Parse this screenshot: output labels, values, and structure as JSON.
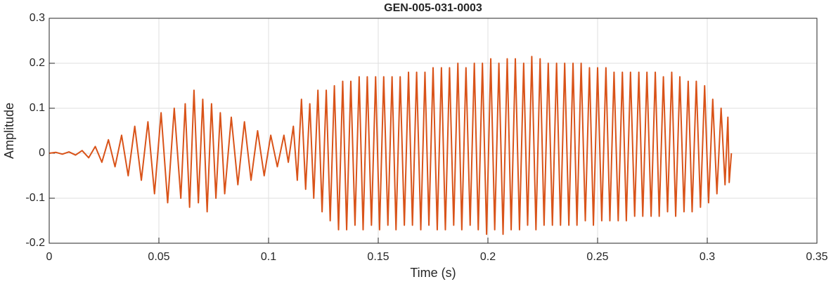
{
  "chart_data": {
    "type": "line",
    "title": "GEN-005-031-0003",
    "x_label": "Time (s)",
    "y_label": "Amplitude",
    "color": "#d95319",
    "grid": true,
    "xlim": [
      0,
      0.35
    ],
    "xticks": [
      0,
      0.05,
      0.1,
      0.15,
      0.2,
      0.25,
      0.3,
      0.35
    ],
    "ylim": [
      -0.2,
      0.3
    ],
    "yticks": [
      -0.2,
      -0.1,
      0,
      0.1,
      0.2,
      0.3
    ],
    "x": [
      0,
      0.003,
      0.006,
      0.009,
      0.012,
      0.015,
      0.018,
      0.021,
      0.024,
      0.027,
      0.03,
      0.033,
      0.036,
      0.039,
      0.042,
      0.045,
      0.048,
      0.051,
      0.054,
      0.057,
      0.06,
      0.062,
      0.064,
      0.066,
      0.068,
      0.07,
      0.072,
      0.074,
      0.076,
      0.078,
      0.08,
      0.083,
      0.086,
      0.089,
      0.092,
      0.095,
      0.098,
      0.101,
      0.104,
      0.107,
      0.109,
      0.1113,
      0.1131,
      0.115,
      0.1169,
      0.1188,
      0.1206,
      0.1225,
      0.1244,
      0.1263,
      0.1281,
      0.13,
      0.1319,
      0.1338,
      0.1356,
      0.1375,
      0.1394,
      0.1413,
      0.1431,
      0.145,
      0.1469,
      0.1488,
      0.1506,
      0.1525,
      0.1544,
      0.1563,
      0.1581,
      0.16,
      0.1619,
      0.1638,
      0.1656,
      0.1675,
      0.1694,
      0.1713,
      0.1731,
      0.175,
      0.1769,
      0.1788,
      0.1806,
      0.1825,
      0.1844,
      0.1863,
      0.1881,
      0.19,
      0.1919,
      0.1938,
      0.1956,
      0.1975,
      0.1994,
      0.2013,
      0.2031,
      0.205,
      0.2069,
      0.2088,
      0.2106,
      0.2125,
      0.2144,
      0.2163,
      0.2181,
      0.22,
      0.2219,
      0.2238,
      0.2256,
      0.2275,
      0.2294,
      0.2313,
      0.2331,
      0.235,
      0.2369,
      0.2388,
      0.2406,
      0.2425,
      0.2444,
      0.2463,
      0.2481,
      0.25,
      0.2519,
      0.2538,
      0.2556,
      0.2575,
      0.2594,
      0.2613,
      0.2631,
      0.265,
      0.2669,
      0.2688,
      0.2706,
      0.2725,
      0.2744,
      0.2763,
      0.2781,
      0.28,
      0.2819,
      0.2838,
      0.2856,
      0.2875,
      0.2894,
      0.2913,
      0.2931,
      0.295,
      0.2969,
      0.2988,
      0.3006,
      0.3025,
      0.3044,
      0.3063,
      0.3081,
      0.3094,
      0.31,
      0.311
    ],
    "values": [
      0,
      0.002,
      -0.002,
      0.003,
      -0.004,
      0.006,
      -0.01,
      0.015,
      -0.02,
      0.03,
      -0.03,
      0.04,
      -0.05,
      0.06,
      -0.06,
      0.07,
      -0.09,
      0.09,
      -0.11,
      0.1,
      -0.1,
      0.11,
      -0.12,
      0.14,
      -0.11,
      0.12,
      -0.13,
      0.11,
      -0.1,
      0.09,
      -0.09,
      0.08,
      -0.07,
      0.07,
      -0.06,
      0.05,
      -0.05,
      0.04,
      -0.03,
      0.04,
      -0.02,
      0.06,
      -0.06,
      0.12,
      -0.08,
      0.11,
      -0.1,
      0.14,
      -0.13,
      0.14,
      -0.15,
      0.15,
      -0.17,
      0.16,
      -0.17,
      0.16,
      -0.16,
      0.17,
      -0.17,
      0.17,
      -0.16,
      0.17,
      -0.17,
      0.17,
      -0.16,
      0.17,
      -0.17,
      0.17,
      -0.16,
      0.18,
      -0.16,
      0.18,
      -0.17,
      0.18,
      -0.16,
      0.19,
      -0.17,
      0.19,
      -0.17,
      0.19,
      -0.16,
      0.2,
      -0.17,
      0.19,
      -0.16,
      0.2,
      -0.17,
      0.2,
      -0.18,
      0.21,
      -0.17,
      0.2,
      -0.18,
      0.21,
      -0.17,
      0.21,
      -0.17,
      0.2,
      -0.16,
      0.215,
      -0.17,
      0.21,
      -0.16,
      0.2,
      -0.16,
      0.2,
      -0.16,
      0.2,
      -0.16,
      0.2,
      -0.16,
      0.2,
      -0.15,
      0.19,
      -0.16,
      0.19,
      -0.15,
      0.19,
      -0.15,
      0.18,
      -0.15,
      0.18,
      -0.15,
      0.18,
      -0.14,
      0.18,
      -0.14,
      0.18,
      -0.14,
      0.18,
      -0.14,
      0.17,
      -0.13,
      0.18,
      -0.14,
      0.17,
      -0.13,
      0.16,
      -0.13,
      0.16,
      -0.12,
      0.15,
      -0.11,
      0.12,
      -0.09,
      0.1,
      -0.07,
      0.08,
      -0.065,
      0
    ]
  }
}
